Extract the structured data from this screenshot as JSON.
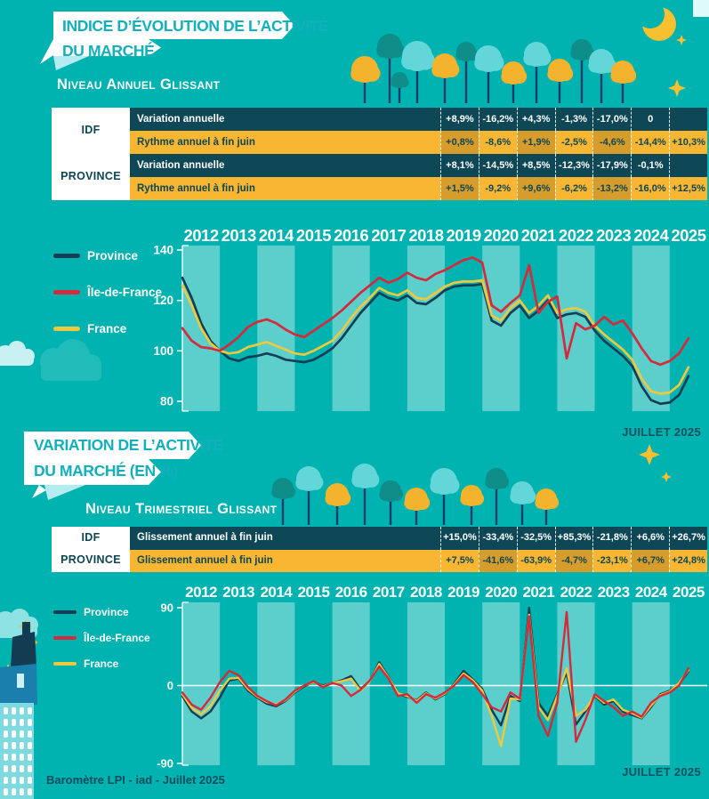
{
  "palette": {
    "background_teal": "#00b2b0",
    "stripe_light": "#5fd3d6",
    "banner_white": "#ffffff",
    "banner_text_teal": "#12b0bd",
    "table_dark_row": "#0e4756",
    "table_gold_row": "#f8b633",
    "table_text_dark": "#0d4653",
    "line_province": "#123f55",
    "line_idf": "#d52a3c",
    "line_france": "#eec93e",
    "date_text": "#11505e"
  },
  "sections": [
    {
      "banner_lines": [
        "INDICE D’ÉVOLUTION DE L’ACTIVITÉ",
        "DU MARCHÉ"
      ],
      "subtitle": "Niveau Annuel Glissant"
    },
    {
      "banner_lines": [
        "VARIATION DE L’ACTIVITÉ",
        "DU MARCHÉ (EN %)"
      ],
      "subtitle": "Niveau Trimestriel Glissant"
    }
  ],
  "footer": {
    "credit": "Baromètre LPI - iad - Juillet 2025"
  },
  "chart_data": [
    {
      "id": "annual-table",
      "type": "table",
      "row_groups": [
        {
          "group": "IDF",
          "rows": [
            {
              "label": "Variation annuelle",
              "style": "dark",
              "values": [
                "+8,9%",
                "-16,2%",
                "+4,3%",
                "-1,3%",
                "-17,0%",
                "0",
                ""
              ],
              "shaded_cols": []
            },
            {
              "label": "Rythme annuel à fin juin",
              "style": "gold",
              "values": [
                "+0,8%",
                "-8,6%",
                "+1,9%",
                "-2,5%",
                "-4,6%",
                "-14,4%",
                "+10,3%"
              ],
              "shaded_cols": [
                0,
                2,
                4
              ]
            }
          ]
        },
        {
          "group": "PROVINCE",
          "rows": [
            {
              "label": "Variation annuelle",
              "style": "dark",
              "values": [
                "+8,1%",
                "-14,5%",
                "+8,5%",
                "-12,3%",
                "-17,9%",
                "-0,1%",
                ""
              ],
              "shaded_cols": []
            },
            {
              "label": "Rythme annuel à fin juin",
              "style": "gold",
              "values": [
                "+1,5%",
                "-9,2%",
                "+9,6%",
                "-6,2%",
                "-13,2%",
                "-16,0%",
                "+12,5%"
              ],
              "shaded_cols": [
                0,
                2,
                4
              ]
            }
          ]
        }
      ]
    },
    {
      "id": "annual-index",
      "type": "line",
      "title": "Indice d'évolution de l'activité du marché - niveau annuel glissant",
      "date_label": "JUILLET 2025",
      "x_start": 2012,
      "x_step": 0.25,
      "year_labels": [
        "2012",
        "2013",
        "2014",
        "2015",
        "2016",
        "2017",
        "2018",
        "2019",
        "2020",
        "2021",
        "2022",
        "2023",
        "2024",
        "2025"
      ],
      "ylim": [
        80,
        140
      ],
      "yticks": [
        140,
        120,
        100,
        80
      ],
      "legend_position": "left",
      "series": [
        {
          "name": "Province",
          "color": "#123f55",
          "values": [
            129,
            121,
            111,
            104,
            100,
            97,
            96,
            97.5,
            98,
            99,
            98,
            96.5,
            96,
            95.5,
            96.5,
            98.5,
            101,
            105,
            110,
            115,
            119,
            123,
            121,
            120,
            122,
            119,
            118.5,
            121,
            124,
            125.5,
            126,
            126,
            126.5,
            112,
            110,
            115,
            118,
            113,
            116,
            120,
            113,
            114.5,
            115,
            113.5,
            108,
            104,
            101,
            98,
            94,
            86,
            80.5,
            79,
            79.5,
            82.5,
            90
          ]
        },
        {
          "name": "Île-de-France",
          "color": "#d52a3c",
          "values": [
            109,
            104,
            101.5,
            101,
            100,
            102.5,
            105.5,
            109.5,
            111.5,
            112.5,
            111,
            108.5,
            106.5,
            105.5,
            108,
            110.5,
            113,
            116,
            119.5,
            123,
            126,
            129,
            127,
            128.5,
            131,
            129,
            128,
            130.5,
            132,
            134,
            136,
            137,
            135,
            118,
            115.5,
            119,
            122,
            134,
            115,
            119.5,
            121.5,
            97,
            111,
            108.5,
            110,
            113.5,
            110.5,
            112,
            107,
            101,
            96,
            94.5,
            96,
            99,
            105
          ]
        },
        {
          "name": "France",
          "color": "#eec93e",
          "values": [
            126,
            118,
            109,
            103,
            100,
            99,
            99.5,
            101.5,
            102.5,
            103.5,
            102,
            100.5,
            99,
            98.5,
            100,
            102,
            104,
            108,
            113,
            117.5,
            121,
            125,
            123,
            122,
            124,
            121,
            120.5,
            123,
            125.5,
            127,
            127.5,
            127.5,
            128,
            114,
            112,
            117,
            120,
            115,
            118,
            122,
            115,
            116.5,
            117,
            115.5,
            110,
            106.5,
            103.5,
            100.5,
            96.5,
            89,
            84,
            83,
            83.5,
            86.5,
            93.5
          ]
        }
      ]
    },
    {
      "id": "quarterly-table",
      "type": "table",
      "row_groups": [
        {
          "group": "IDF",
          "rows": [
            {
              "label": "Glissement annuel à fin juin",
              "style": "dark",
              "values": [
                "+15,0%",
                "-33,4%",
                "-32,5%",
                "+85,3%",
                "-21,8%",
                "+6,6%",
                "+26,7%"
              ],
              "shaded_cols": []
            }
          ]
        },
        {
          "group": "PROVINCE",
          "rows": [
            {
              "label": "Glissement annuel à fin juin",
              "style": "gold",
              "values": [
                "+7,5%",
                "-41,6%",
                "-63,9%",
                "-4,7%",
                "-23,1%",
                "+6,7%",
                "+24,8%"
              ],
              "shaded_cols": [
                1,
                3,
                5
              ]
            }
          ]
        }
      ]
    },
    {
      "id": "quarterly-variation",
      "type": "line",
      "title": "Variation de l'activité du marché (en %) - niveau trimestriel glissant",
      "date_label": "JUILLET 2025",
      "x_start": 2012,
      "x_step": 0.25,
      "year_labels": [
        "2012",
        "2013",
        "2014",
        "2015",
        "2016",
        "2017",
        "2018",
        "2019",
        "2020",
        "2021",
        "2022",
        "2023",
        "2024",
        "2025"
      ],
      "ylim": [
        -90,
        90
      ],
      "yticks": [
        90,
        0,
        -90
      ],
      "zero_line": true,
      "legend_position": "left",
      "series": [
        {
          "name": "Province",
          "color": "#123f55",
          "values": [
            -12,
            -30,
            -38,
            -30,
            -14,
            6,
            8,
            -6,
            -14,
            -21,
            -24,
            -18,
            -8,
            -1,
            4,
            0,
            3,
            6,
            11,
            -4,
            5,
            27,
            10,
            -10,
            -13,
            -17,
            -8,
            -16,
            -10,
            2,
            17,
            7,
            -4,
            -28,
            -46,
            -12,
            -18,
            90,
            -20,
            -35,
            -10,
            15,
            -45,
            -30,
            -12,
            -22,
            -18,
            -30,
            -34,
            -38,
            -25,
            -10,
            -6,
            2,
            16
          ]
        },
        {
          "name": "Île-de-France",
          "color": "#d52a3c",
          "values": [
            -8,
            -22,
            -28,
            -14,
            4,
            17,
            12,
            -2,
            -12,
            -18,
            -23,
            -16,
            -6,
            0,
            5,
            -2,
            3,
            0,
            -12,
            -5,
            6,
            22,
            8,
            -12,
            -10,
            -20,
            -10,
            -14,
            -8,
            0,
            12,
            4,
            -10,
            -25,
            -30,
            -8,
            -15,
            80,
            -35,
            -58,
            -20,
            85,
            -65,
            -40,
            -10,
            -18,
            -25,
            -35,
            -30,
            -36,
            -20,
            -12,
            -8,
            0,
            20
          ]
        },
        {
          "name": "France",
          "color": "#eec93e",
          "values": [
            -10,
            -26,
            -33,
            -24,
            -6,
            8,
            9,
            -4,
            -13,
            -19,
            -22,
            -17,
            -7,
            0,
            4,
            -1,
            3,
            5,
            8,
            -6,
            5,
            25,
            9,
            -9,
            -12,
            -18,
            -9,
            -15,
            -9,
            1,
            14,
            6,
            -6,
            -35,
            -70,
            -15,
            -16,
            82,
            -25,
            -40,
            -12,
            20,
            -35,
            -28,
            -11,
            -20,
            -16,
            -28,
            -32,
            -37,
            -23,
            -11,
            -7,
            3,
            18
          ]
        }
      ]
    }
  ]
}
